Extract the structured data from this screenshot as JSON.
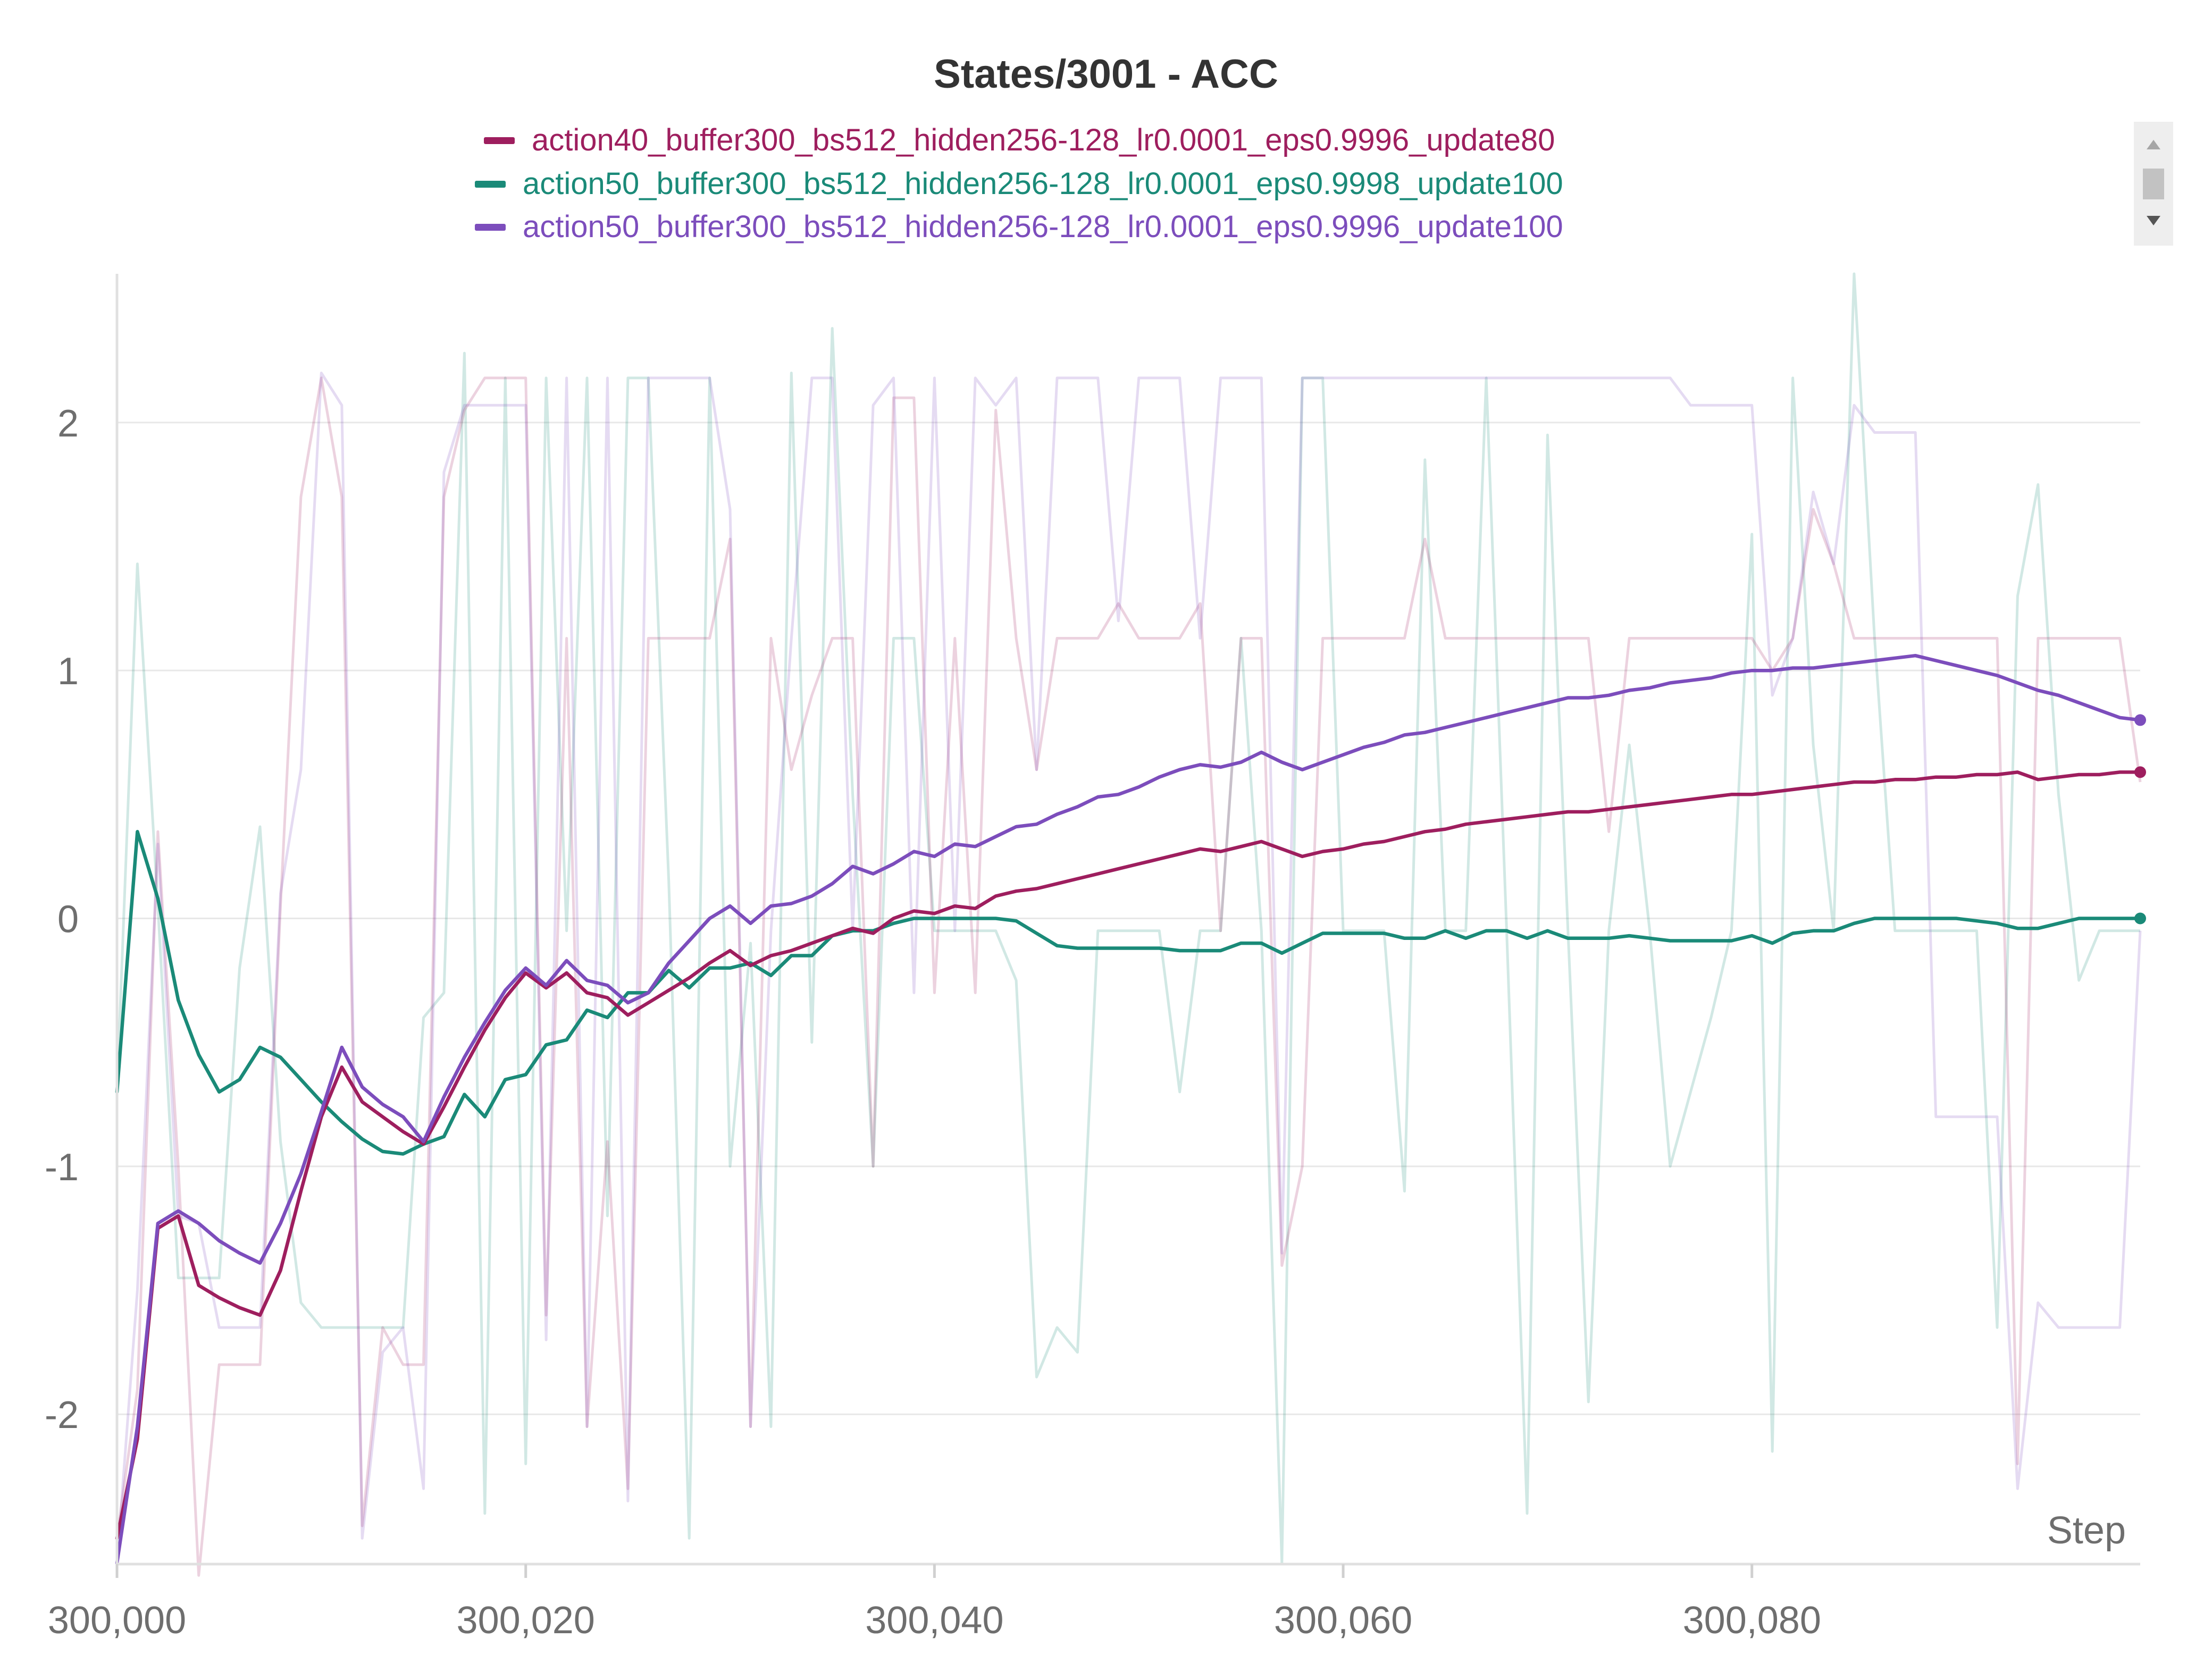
{
  "title": "States/3001 - ACC",
  "colors": {
    "purple": "#7c4dbc",
    "magenta": "#9e1e5e",
    "teal": "#1a8a78",
    "grid": "#e8e8e8",
    "text": "#6e6e6e"
  },
  "chart_data": {
    "type": "line",
    "title": "States/3001 - ACC",
    "xlabel": "Step",
    "ylabel": "",
    "xlim": [
      300000,
      300099
    ],
    "ylim": [
      -2.6,
      2.6
    ],
    "x_ticks": [
      300000,
      300020,
      300040,
      300060,
      300080
    ],
    "x_tick_labels": [
      "300,000",
      "300,020",
      "300,040",
      "300,060",
      "300,080"
    ],
    "y_ticks": [
      -2,
      -1,
      0,
      1,
      2
    ],
    "y_tick_labels": [
      "-2",
      "-1",
      "0",
      "1",
      "2"
    ],
    "grid": true,
    "legend_position": "top-center",
    "x_start": 300000,
    "series": [
      {
        "name": "action40_buffer300_bs512_hidden256-128_lr0.0001_eps0.9996_update80",
        "color": "#9e1e5e",
        "smoothed": [
          -2.5,
          -2.1,
          -1.25,
          -1.2,
          -1.48,
          -1.53,
          -1.57,
          -1.6,
          -1.42,
          -1.1,
          -0.8,
          -0.6,
          -0.74,
          -0.8,
          -0.86,
          -0.91,
          -0.76,
          -0.6,
          -0.45,
          -0.32,
          -0.22,
          -0.28,
          -0.22,
          -0.3,
          -0.32,
          -0.39,
          -0.34,
          -0.29,
          -0.24,
          -0.18,
          -0.13,
          -0.19,
          -0.15,
          -0.13,
          -0.1,
          -0.07,
          -0.04,
          -0.06,
          0.0,
          0.03,
          0.02,
          0.05,
          0.04,
          0.09,
          0.11,
          0.12,
          0.14,
          0.16,
          0.18,
          0.2,
          0.22,
          0.24,
          0.26,
          0.28,
          0.27,
          0.29,
          0.31,
          0.28,
          0.25,
          0.27,
          0.28,
          0.3,
          0.31,
          0.33,
          0.35,
          0.36,
          0.38,
          0.39,
          0.4,
          0.41,
          0.42,
          0.43,
          0.43,
          0.44,
          0.45,
          0.46,
          0.47,
          0.48,
          0.49,
          0.5,
          0.5,
          0.51,
          0.52,
          0.53,
          0.54,
          0.55,
          0.55,
          0.56,
          0.56,
          0.57,
          0.57,
          0.58,
          0.58,
          0.59,
          0.56,
          0.57,
          0.58,
          0.58,
          0.59,
          0.59
        ],
        "raw": [
          -2.5,
          -1.9,
          0.35,
          -1.0,
          -2.65,
          -1.8,
          -1.8,
          -1.8,
          0.05,
          1.7,
          2.18,
          1.7,
          -2.45,
          -1.65,
          -1.8,
          -1.8,
          1.7,
          2.05,
          2.18,
          2.18,
          2.18,
          -1.6,
          1.13,
          -2.05,
          -0.9,
          -2.3,
          1.13,
          1.13,
          1.13,
          1.13,
          1.53,
          -2.05,
          1.13,
          0.6,
          0.9,
          1.13,
          1.13,
          -1.0,
          2.1,
          2.1,
          -0.3,
          1.13,
          -0.3,
          2.05,
          1.13,
          0.6,
          1.13,
          1.13,
          1.13,
          1.27,
          1.13,
          1.13,
          1.13,
          1.27,
          -0.05,
          1.13,
          1.13,
          -1.4,
          -1.0,
          1.13,
          1.13,
          1.13,
          1.13,
          1.13,
          1.53,
          1.13,
          1.13,
          1.13,
          1.13,
          1.13,
          1.13,
          1.13,
          1.13,
          0.35,
          1.13,
          1.13,
          1.13,
          1.13,
          1.13,
          1.13,
          1.13,
          1.0,
          1.13,
          1.65,
          1.43,
          1.13,
          1.13,
          1.13,
          1.13,
          1.13,
          1.13,
          1.13,
          1.13,
          -2.2,
          1.13,
          1.13,
          1.13,
          1.13,
          1.13,
          0.55
        ]
      },
      {
        "name": "action50_buffer300_bs512_hidden256-128_lr0.0001_eps0.9998_update100",
        "color": "#1a8a78",
        "smoothed": [
          -0.7,
          0.35,
          0.08,
          -0.33,
          -0.55,
          -0.7,
          -0.65,
          -0.52,
          -0.56,
          -0.65,
          -0.74,
          -0.82,
          -0.89,
          -0.94,
          -0.95,
          -0.91,
          -0.88,
          -0.71,
          -0.8,
          -0.65,
          -0.63,
          -0.51,
          -0.49,
          -0.37,
          -0.4,
          -0.3,
          -0.3,
          -0.21,
          -0.28,
          -0.2,
          -0.2,
          -0.18,
          -0.23,
          -0.15,
          -0.15,
          -0.07,
          -0.05,
          -0.05,
          -0.02,
          0.0,
          0.0,
          0.0,
          0.0,
          0.0,
          -0.01,
          -0.06,
          -0.11,
          -0.12,
          -0.12,
          -0.12,
          -0.12,
          -0.12,
          -0.13,
          -0.13,
          -0.13,
          -0.1,
          -0.1,
          -0.14,
          -0.1,
          -0.06,
          -0.06,
          -0.06,
          -0.06,
          -0.08,
          -0.08,
          -0.05,
          -0.08,
          -0.05,
          -0.05,
          -0.08,
          -0.05,
          -0.08,
          -0.08,
          -0.08,
          -0.07,
          -0.08,
          -0.09,
          -0.09,
          -0.09,
          -0.09,
          -0.07,
          -0.1,
          -0.06,
          -0.05,
          -0.05,
          -0.02,
          0.0,
          0.0,
          0.0,
          0.0,
          0.0,
          -0.01,
          -0.02,
          -0.04,
          -0.04,
          -0.02,
          0.0,
          0.0,
          0.0,
          0.0
        ],
        "raw": [
          -0.7,
          1.43,
          0.05,
          -1.45,
          -1.45,
          -1.45,
          -0.2,
          0.37,
          -0.9,
          -1.55,
          -1.65,
          -1.65,
          -1.65,
          -1.65,
          -1.65,
          -0.4,
          -0.3,
          2.28,
          -2.4,
          2.18,
          -2.2,
          2.18,
          -0.05,
          2.18,
          -1.2,
          2.18,
          2.18,
          0.15,
          -2.5,
          2.18,
          -1.0,
          -0.1,
          -2.05,
          2.2,
          -0.5,
          2.38,
          0.5,
          -1.0,
          1.13,
          1.13,
          -0.05,
          -0.05,
          -0.05,
          -0.05,
          -0.25,
          -1.85,
          -1.65,
          -1.75,
          -0.05,
          -0.05,
          -0.05,
          -0.05,
          -0.7,
          -0.05,
          -0.05,
          1.13,
          -0.05,
          -2.6,
          2.18,
          2.18,
          -0.05,
          -0.05,
          -0.05,
          -1.1,
          1.85,
          -0.05,
          -0.05,
          2.18,
          -0.05,
          -2.4,
          1.95,
          -0.05,
          -1.95,
          -0.05,
          0.7,
          -0.05,
          -1.0,
          -0.7,
          -0.4,
          -0.05,
          1.55,
          -2.15,
          2.18,
          0.7,
          -0.05,
          2.6,
          1.13,
          -0.05,
          -0.05,
          -0.05,
          -0.05,
          -0.05,
          -1.65,
          1.3,
          1.75,
          0.5,
          -0.25,
          -0.05,
          -0.05,
          -0.05
        ]
      },
      {
        "name": "action50_buffer300_bs512_hidden256-128_lr0.0001_eps0.9996_update100",
        "color": "#7c4dbc",
        "smoothed": [
          -2.6,
          -2.05,
          -1.23,
          -1.18,
          -1.23,
          -1.3,
          -1.35,
          -1.39,
          -1.23,
          -1.03,
          -0.78,
          -0.52,
          -0.68,
          -0.75,
          -0.8,
          -0.9,
          -0.72,
          -0.56,
          -0.42,
          -0.29,
          -0.2,
          -0.27,
          -0.17,
          -0.25,
          -0.27,
          -0.34,
          -0.3,
          -0.18,
          -0.09,
          0.0,
          0.05,
          -0.02,
          0.05,
          0.06,
          0.09,
          0.14,
          0.21,
          0.18,
          0.22,
          0.27,
          0.25,
          0.3,
          0.29,
          0.33,
          0.37,
          0.38,
          0.42,
          0.45,
          0.49,
          0.5,
          0.53,
          0.57,
          0.6,
          0.62,
          0.61,
          0.63,
          0.67,
          0.63,
          0.6,
          0.63,
          0.66,
          0.69,
          0.71,
          0.74,
          0.75,
          0.77,
          0.79,
          0.81,
          0.83,
          0.85,
          0.87,
          0.89,
          0.89,
          0.9,
          0.92,
          0.93,
          0.95,
          0.96,
          0.97,
          0.99,
          1.0,
          1.0,
          1.01,
          1.01,
          1.02,
          1.03,
          1.04,
          1.05,
          1.06,
          1.04,
          1.02,
          1.0,
          0.98,
          0.95,
          0.92,
          0.9,
          0.87,
          0.84,
          0.81,
          0.8
        ],
        "raw": [
          -2.6,
          -1.5,
          0.3,
          -1.2,
          -1.23,
          -1.65,
          -1.65,
          -1.65,
          0.1,
          0.6,
          2.2,
          2.07,
          -2.5,
          -1.75,
          -1.65,
          -2.3,
          1.8,
          2.07,
          2.07,
          2.07,
          2.07,
          -1.7,
          2.18,
          -2.05,
          2.18,
          -2.35,
          2.18,
          2.18,
          2.18,
          2.18,
          1.65,
          -2.05,
          -0.05,
          1.13,
          2.18,
          2.18,
          -0.05,
          2.07,
          2.18,
          -0.3,
          2.18,
          -0.05,
          2.18,
          2.07,
          2.18,
          0.6,
          2.18,
          2.18,
          2.18,
          1.2,
          2.18,
          2.18,
          2.18,
          1.13,
          2.18,
          2.18,
          2.18,
          -1.35,
          2.18,
          2.18,
          2.18,
          2.18,
          2.18,
          2.18,
          2.18,
          2.18,
          2.18,
          2.18,
          2.18,
          2.18,
          2.18,
          2.18,
          2.18,
          2.18,
          2.18,
          2.18,
          2.18,
          2.07,
          2.07,
          2.07,
          2.07,
          0.9,
          1.13,
          1.72,
          1.43,
          2.07,
          1.96,
          1.96,
          1.96,
          -0.8,
          -0.8,
          -0.8,
          -0.8,
          -2.3,
          -1.55,
          -1.65,
          -1.65,
          -1.65,
          -1.65,
          -0.05
        ]
      }
    ]
  }
}
